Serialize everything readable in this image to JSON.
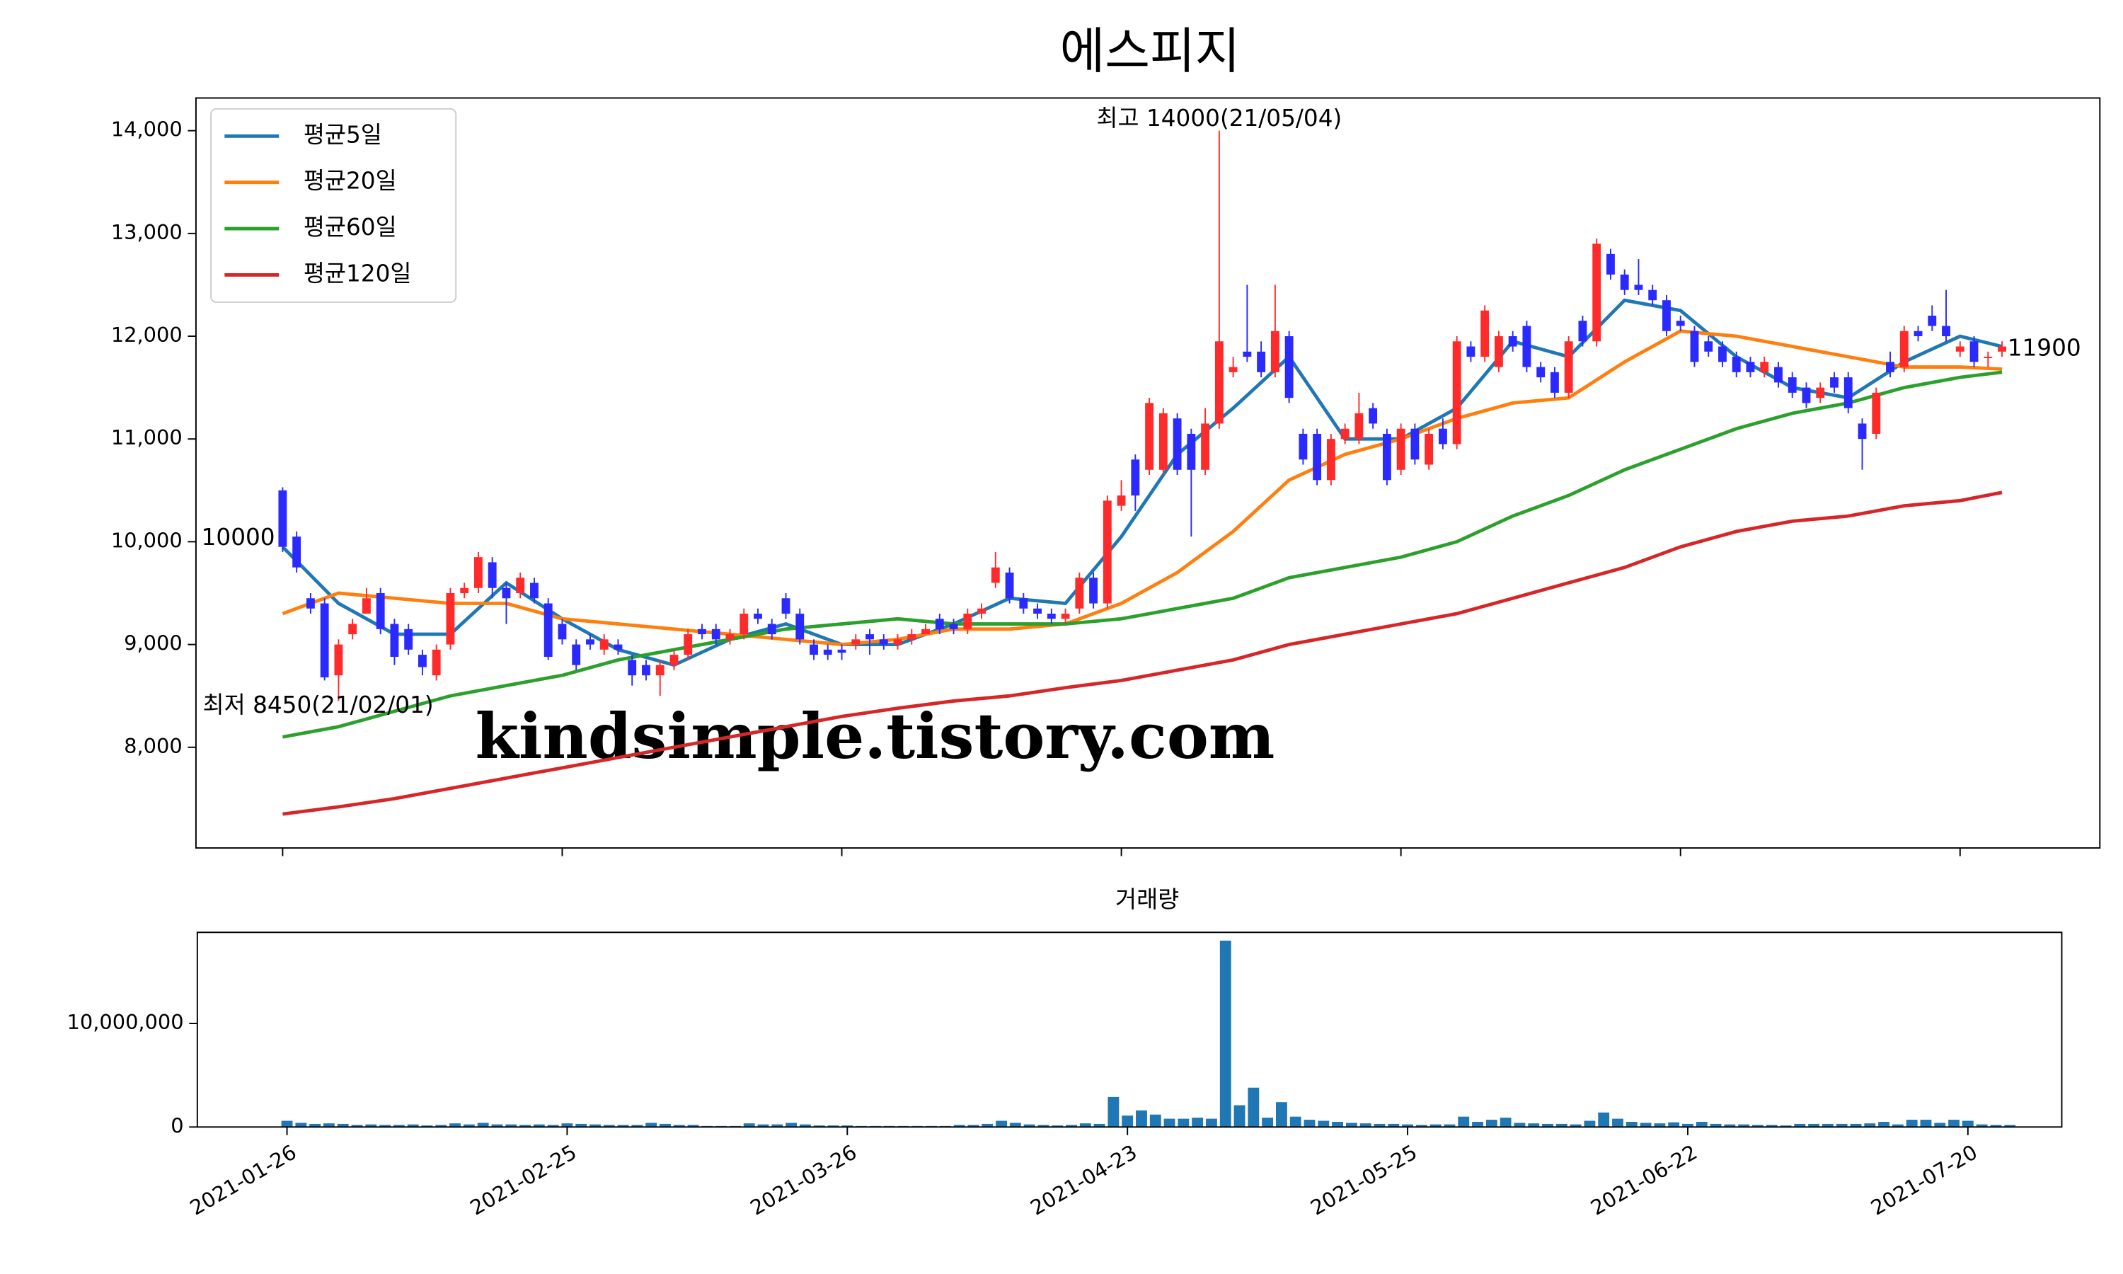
{
  "title": "에스피지",
  "chart_data": [
    {
      "type": "candlestick",
      "up_color": "#ff2a2a",
      "down_color": "#2a2aff",
      "xlim": [
        -6.2,
        130
      ],
      "ylim": [
        7020,
        14318
      ],
      "yticks": [
        {
          "value": 8000,
          "label": "8,000"
        },
        {
          "value": 9000,
          "label": "9,000"
        },
        {
          "value": 10000,
          "label": "10,000"
        },
        {
          "value": 11000,
          "label": "11,000"
        },
        {
          "value": 12000,
          "label": "12,000"
        },
        {
          "value": 13000,
          "label": "13,000"
        },
        {
          "value": 14000,
          "label": "14,000"
        }
      ],
      "open": [
        10500,
        10050,
        9450,
        9400,
        8700,
        9100,
        9300,
        9500,
        9200,
        9150,
        8900,
        8700,
        9000,
        9500,
        9550,
        9800,
        9550,
        9500,
        9600,
        9400,
        9200,
        9000,
        9050,
        8950,
        9000,
        8850,
        8800,
        8700,
        8800,
        8900,
        9150,
        9150,
        9050,
        9100,
        9300,
        9200,
        9450,
        9300,
        9000,
        8950,
        8950,
        9000,
        9100,
        9050,
        9000,
        9050,
        9100,
        9250,
        9200,
        9150,
        9300,
        9600,
        9700,
        9450,
        9350,
        9300,
        9250,
        9350,
        9650,
        9400,
        10350,
        10800,
        10700,
        10700,
        11200,
        11050,
        10700,
        11150,
        11650,
        11850,
        11850,
        11650,
        12000,
        11050,
        11050,
        10600,
        11000,
        11000,
        11300,
        11050,
        10700,
        11100,
        10750,
        11100,
        10950,
        11900,
        11800,
        11700,
        12000,
        12100,
        11700,
        11650,
        11450,
        12150,
        11950,
        12800,
        12600,
        12500,
        12450,
        12350,
        12150,
        12050,
        11950,
        11900,
        11800,
        11750,
        11650,
        11700,
        11600,
        11500,
        11400,
        11600,
        11600,
        11150,
        11050,
        11750,
        11700,
        12050,
        12200,
        12100,
        11850,
        11950,
        11800,
        11850
      ],
      "high": [
        10530,
        10100,
        9500,
        9450,
        9050,
        9250,
        9550,
        9550,
        9250,
        9200,
        8950,
        9000,
        9550,
        9600,
        9900,
        9850,
        9600,
        9700,
        9650,
        9450,
        9250,
        9050,
        9100,
        9100,
        9050,
        8900,
        8850,
        8850,
        8950,
        9150,
        9200,
        9200,
        9150,
        9350,
        9350,
        9250,
        9500,
        9350,
        9050,
        9000,
        9000,
        9100,
        9150,
        9100,
        9100,
        9150,
        9200,
        9300,
        9250,
        9350,
        9400,
        9900,
        9750,
        9500,
        9400,
        9350,
        9350,
        9700,
        9700,
        10450,
        10600,
        10850,
        11400,
        11300,
        11250,
        11100,
        11300,
        14000,
        11800,
        12500,
        11950,
        12500,
        12050,
        11100,
        11100,
        11050,
        11150,
        11450,
        11350,
        11100,
        11150,
        11150,
        11100,
        11200,
        12000,
        11950,
        12300,
        12050,
        12050,
        12150,
        11750,
        11700,
        12000,
        12200,
        12950,
        12850,
        12650,
        12750,
        12500,
        12400,
        12200,
        12100,
        12000,
        11950,
        11850,
        11800,
        11800,
        11750,
        11650,
        11550,
        11550,
        11650,
        11650,
        11200,
        11500,
        11850,
        12100,
        12100,
        12300,
        12450,
        11950,
        12000,
        11850,
        11950
      ],
      "low": [
        9900,
        9700,
        9300,
        8650,
        8450,
        9050,
        9300,
        9100,
        8800,
        8900,
        8700,
        8650,
        8950,
        9450,
        9500,
        9450,
        9200,
        9450,
        9400,
        8850,
        9000,
        8750,
        8950,
        8900,
        8900,
        8600,
        8650,
        8500,
        8750,
        8850,
        9050,
        9000,
        9000,
        9050,
        9200,
        9050,
        9250,
        9000,
        8850,
        8850,
        8850,
        8950,
        8900,
        8950,
        8950,
        9000,
        9100,
        9100,
        9100,
        9100,
        9250,
        9550,
        9400,
        9300,
        9250,
        9200,
        9200,
        9300,
        9350,
        9350,
        10300,
        10300,
        10650,
        10650,
        10650,
        10050,
        10650,
        11100,
        11600,
        11750,
        11600,
        11600,
        11350,
        10750,
        10550,
        10550,
        10950,
        10950,
        11100,
        10550,
        10650,
        10750,
        10700,
        10900,
        10900,
        11750,
        11750,
        11650,
        11850,
        11650,
        11550,
        11400,
        11400,
        11900,
        11900,
        12550,
        12400,
        12400,
        12300,
        12000,
        12050,
        11700,
        11800,
        11700,
        11600,
        11600,
        11600,
        11500,
        11400,
        11300,
        11350,
        11450,
        11250,
        10700,
        11000,
        11600,
        11650,
        11950,
        12050,
        11950,
        11800,
        11700,
        11700,
        11800
      ],
      "close": [
        9950,
        9750,
        9350,
        8680,
        9000,
        9200,
        9450,
        9150,
        8880,
        8950,
        8780,
        8950,
        9500,
        9550,
        9850,
        9550,
        9450,
        9650,
        9450,
        8880,
        9050,
        8800,
        9000,
        9050,
        8950,
        8700,
        8700,
        8800,
        8900,
        9100,
        9100,
        9050,
        9100,
        9300,
        9250,
        9100,
        9300,
        9050,
        8900,
        8900,
        8920,
        9050,
        9050,
        9000,
        9050,
        9100,
        9150,
        9150,
        9150,
        9300,
        9350,
        9750,
        9450,
        9350,
        9300,
        9250,
        9300,
        9650,
        9400,
        10400,
        10450,
        10450,
        11350,
        11250,
        10700,
        10700,
        11150,
        11950,
        11700,
        11800,
        11650,
        12050,
        11400,
        10800,
        10600,
        11000,
        11100,
        11250,
        11150,
        10600,
        11100,
        10800,
        11050,
        10950,
        11950,
        11800,
        12250,
        12000,
        11900,
        11700,
        11600,
        11450,
        11950,
        11950,
        12900,
        12600,
        12450,
        12450,
        12350,
        12050,
        12100,
        11750,
        11850,
        11750,
        11650,
        11650,
        11750,
        11550,
        11450,
        11350,
        11500,
        11500,
        11300,
        11000,
        11450,
        11650,
        12050,
        12000,
        12100,
        12000,
        11900,
        11750,
        11800,
        11900
      ],
      "series": [
        {
          "name": "평균5일",
          "color": "#1f77b4",
          "x": [
            0,
            4,
            8,
            12,
            16,
            20,
            24,
            28,
            32,
            36,
            40,
            44,
            48,
            52,
            56,
            60,
            64,
            68,
            72,
            76,
            80,
            84,
            88,
            92,
            96,
            100,
            104,
            108,
            112,
            116,
            120,
            123
          ],
          "values": [
            9950,
            9400,
            9100,
            9100,
            9600,
            9250,
            8950,
            8800,
            9050,
            9200,
            9000,
            9000,
            9200,
            9450,
            9400,
            10050,
            10850,
            11300,
            11800,
            11000,
            11000,
            11300,
            11950,
            11800,
            12350,
            12250,
            11800,
            11500,
            11400,
            11750,
            12000,
            11900
          ]
        },
        {
          "name": "평균20일",
          "color": "#ff7f0e",
          "x": [
            0,
            4,
            8,
            12,
            16,
            20,
            24,
            28,
            32,
            36,
            40,
            44,
            48,
            52,
            56,
            60,
            64,
            68,
            72,
            76,
            80,
            84,
            88,
            92,
            96,
            100,
            104,
            108,
            112,
            116,
            120,
            123
          ],
          "values": [
            9300,
            9500,
            9450,
            9400,
            9400,
            9250,
            9200,
            9150,
            9100,
            9050,
            9000,
            9050,
            9150,
            9150,
            9200,
            9400,
            9700,
            10100,
            10600,
            10850,
            11000,
            11200,
            11350,
            11400,
            11750,
            12050,
            12000,
            11900,
            11800,
            11700,
            11700,
            11680
          ]
        },
        {
          "name": "평균60일",
          "color": "#2ca02c",
          "x": [
            0,
            4,
            8,
            12,
            16,
            20,
            24,
            28,
            32,
            36,
            40,
            44,
            48,
            52,
            56,
            60,
            64,
            68,
            72,
            76,
            80,
            84,
            88,
            92,
            96,
            100,
            104,
            108,
            112,
            116,
            120,
            123
          ],
          "values": [
            8100,
            8200,
            8350,
            8500,
            8600,
            8700,
            8850,
            8950,
            9050,
            9150,
            9200,
            9250,
            9200,
            9200,
            9200,
            9250,
            9350,
            9450,
            9650,
            9750,
            9850,
            10000,
            10250,
            10450,
            10700,
            10900,
            11100,
            11250,
            11350,
            11500,
            11600,
            11650
          ]
        },
        {
          "name": "평균120일",
          "color": "#d62728",
          "x": [
            0,
            4,
            8,
            12,
            16,
            20,
            24,
            28,
            32,
            36,
            40,
            44,
            48,
            52,
            56,
            60,
            64,
            68,
            72,
            76,
            80,
            84,
            88,
            92,
            96,
            100,
            104,
            108,
            112,
            116,
            120,
            123
          ],
          "values": [
            7350,
            7420,
            7500,
            7600,
            7700,
            7800,
            7900,
            8000,
            8100,
            8200,
            8300,
            8380,
            8450,
            8500,
            8580,
            8650,
            8750,
            8850,
            9000,
            9100,
            9200,
            9300,
            9450,
            9600,
            9750,
            9950,
            10100,
            10200,
            10250,
            10350,
            10400,
            10480
          ]
        }
      ],
      "legend": "upper left",
      "annotations": {
        "high": {
          "text": "최고 14000(21/05/04)",
          "color": "#ff0000"
        },
        "low": {
          "text": "최저 8450(21/02/01)",
          "color": "#0000ff"
        },
        "first": "10000",
        "last": "11900"
      },
      "watermark": {
        "text": "kindsimple.tistory.com",
        "color": "#e0a0f0"
      }
    },
    {
      "type": "bar",
      "title": "거래량",
      "color": "#1f77b4",
      "xlim": [
        -6.4,
        126.7
      ],
      "ylim": [
        0,
        18800000
      ],
      "yticks": [
        0,
        {
          "value": 10000000,
          "label": "10,000,000"
        }
      ],
      "xticks": [
        {
          "value": 0,
          "label": "2021-01-26"
        },
        {
          "value": 20,
          "label": "2021-02-25"
        },
        {
          "value": 40,
          "label": "2021-03-26"
        },
        {
          "value": 60,
          "label": "2021-04-23"
        },
        {
          "value": 80,
          "label": "2021-05-25"
        },
        {
          "value": 100,
          "label": "2021-06-22"
        },
        {
          "value": 120,
          "label": "2021-07-20"
        }
      ],
      "values": [
        600000,
        400000,
        300000,
        350000,
        300000,
        200000,
        250000,
        200000,
        200000,
        250000,
        150000,
        200000,
        350000,
        250000,
        400000,
        250000,
        250000,
        200000,
        250000,
        200000,
        350000,
        300000,
        250000,
        200000,
        200000,
        200000,
        400000,
        300000,
        200000,
        200000,
        100000,
        100000,
        100000,
        350000,
        250000,
        250000,
        400000,
        250000,
        150000,
        150000,
        150000,
        100000,
        100000,
        100000,
        100000,
        100000,
        100000,
        100000,
        200000,
        200000,
        300000,
        600000,
        400000,
        250000,
        200000,
        150000,
        200000,
        350000,
        300000,
        2900000,
        1100000,
        1600000,
        1200000,
        800000,
        800000,
        900000,
        800000,
        18000000,
        2100000,
        3800000,
        900000,
        2400000,
        1000000,
        700000,
        600000,
        500000,
        400000,
        350000,
        300000,
        300000,
        250000,
        200000,
        250000,
        250000,
        1000000,
        500000,
        700000,
        900000,
        400000,
        350000,
        300000,
        300000,
        250000,
        600000,
        1400000,
        800000,
        500000,
        400000,
        350000,
        450000,
        300000,
        500000,
        300000,
        250000,
        250000,
        200000,
        200000,
        150000,
        300000,
        300000,
        300000,
        300000,
        300000,
        350000,
        500000,
        250000,
        700000,
        700000,
        400000,
        700000,
        600000,
        250000,
        200000,
        200000
      ]
    }
  ]
}
